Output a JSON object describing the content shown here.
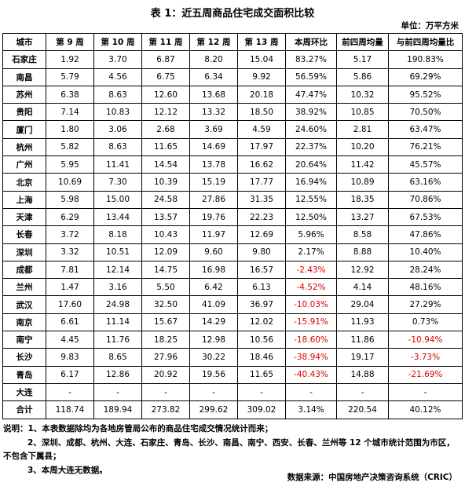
{
  "title": "表 1：近五周商品住宅成交面积比较",
  "unit": "单位：万平方米",
  "table": {
    "headers": [
      "城市",
      "第 9 周",
      "第 10 周",
      "第 11 周",
      "第 12 周",
      "第 13 周",
      "本周环比",
      "前四周均量",
      "与前四周均量比"
    ],
    "rows": [
      [
        "石家庄",
        "1.92",
        "3.70",
        "6.87",
        "8.20",
        "15.04",
        "83.27%",
        "5.17",
        "190.83%"
      ],
      [
        "南昌",
        "5.79",
        "4.56",
        "6.75",
        "6.34",
        "9.92",
        "56.59%",
        "5.86",
        "69.29%"
      ],
      [
        "苏州",
        "6.38",
        "8.63",
        "12.60",
        "13.68",
        "20.18",
        "47.47%",
        "10.32",
        "95.52%"
      ],
      [
        "贵阳",
        "7.14",
        "10.83",
        "12.12",
        "13.32",
        "18.50",
        "38.92%",
        "10.85",
        "70.50%"
      ],
      [
        "厦门",
        "1.80",
        "3.06",
        "2.68",
        "3.69",
        "4.59",
        "24.60%",
        "2.81",
        "63.47%"
      ],
      [
        "杭州",
        "5.82",
        "8.63",
        "11.65",
        "14.69",
        "17.97",
        "22.37%",
        "10.20",
        "76.21%"
      ],
      [
        "广州",
        "5.95",
        "11.41",
        "14.54",
        "13.78",
        "16.62",
        "20.64%",
        "11.42",
        "45.57%"
      ],
      [
        "北京",
        "10.69",
        "7.30",
        "10.39",
        "15.19",
        "17.77",
        "16.94%",
        "10.89",
        "63.16%"
      ],
      [
        "上海",
        "5.98",
        "15.00",
        "24.58",
        "27.86",
        "31.35",
        "12.55%",
        "18.35",
        "70.86%"
      ],
      [
        "天津",
        "6.29",
        "13.44",
        "13.57",
        "19.76",
        "22.23",
        "12.50%",
        "13.27",
        "67.53%"
      ],
      [
        "长春",
        "3.72",
        "8.18",
        "10.43",
        "11.97",
        "12.69",
        "5.96%",
        "8.58",
        "47.86%"
      ],
      [
        "深圳",
        "3.32",
        "10.51",
        "12.09",
        "9.60",
        "9.80",
        "2.17%",
        "8.88",
        "10.40%"
      ],
      [
        "成都",
        "7.81",
        "12.14",
        "14.75",
        "16.98",
        "16.57",
        "-2.43%",
        "12.92",
        "28.24%"
      ],
      [
        "兰州",
        "1.47",
        "3.16",
        "5.50",
        "6.42",
        "6.13",
        "-4.52%",
        "4.14",
        "48.16%"
      ],
      [
        "武汉",
        "17.60",
        "24.98",
        "32.50",
        "41.09",
        "36.97",
        "-10.03%",
        "29.04",
        "27.29%"
      ],
      [
        "南京",
        "6.61",
        "11.14",
        "15.67",
        "14.29",
        "12.02",
        "-15.91%",
        "11.93",
        "0.73%"
      ],
      [
        "南宁",
        "4.45",
        "11.76",
        "18.25",
        "12.98",
        "10.56",
        "-18.60%",
        "11.86",
        "-10.94%"
      ],
      [
        "长沙",
        "9.83",
        "8.65",
        "27.96",
        "30.22",
        "18.46",
        "-38.94%",
        "19.17",
        "-3.73%"
      ],
      [
        "青岛",
        "6.17",
        "12.86",
        "20.92",
        "19.56",
        "11.65",
        "-40.43%",
        "14.88",
        "-21.69%"
      ],
      [
        "大连",
        "-",
        "-",
        "-",
        "-",
        "-",
        "-",
        "-",
        "-"
      ],
      [
        "合计",
        "118.74",
        "189.94",
        "273.82",
        "299.62",
        "309.02",
        "3.14%",
        "220.54",
        "40.12%"
      ]
    ]
  },
  "notes": {
    "line1": "说明：1、本表数据除均为各地房管局公布的商品住宅成交情况统计而来；",
    "line2": "2、深圳、成都、杭州、大连、石家庄、青岛、长沙、南昌、南宁、西安、长春、兰州等 12 个城市统计范围为市区，",
    "line3": "不包含下属县；",
    "line4": "3、本周大连无数据。"
  },
  "source": "数据来源：中国房地产决策咨询系统（CRIC）",
  "colors": {
    "negative": "#d80000",
    "text": "#000000",
    "border": "#000000"
  }
}
